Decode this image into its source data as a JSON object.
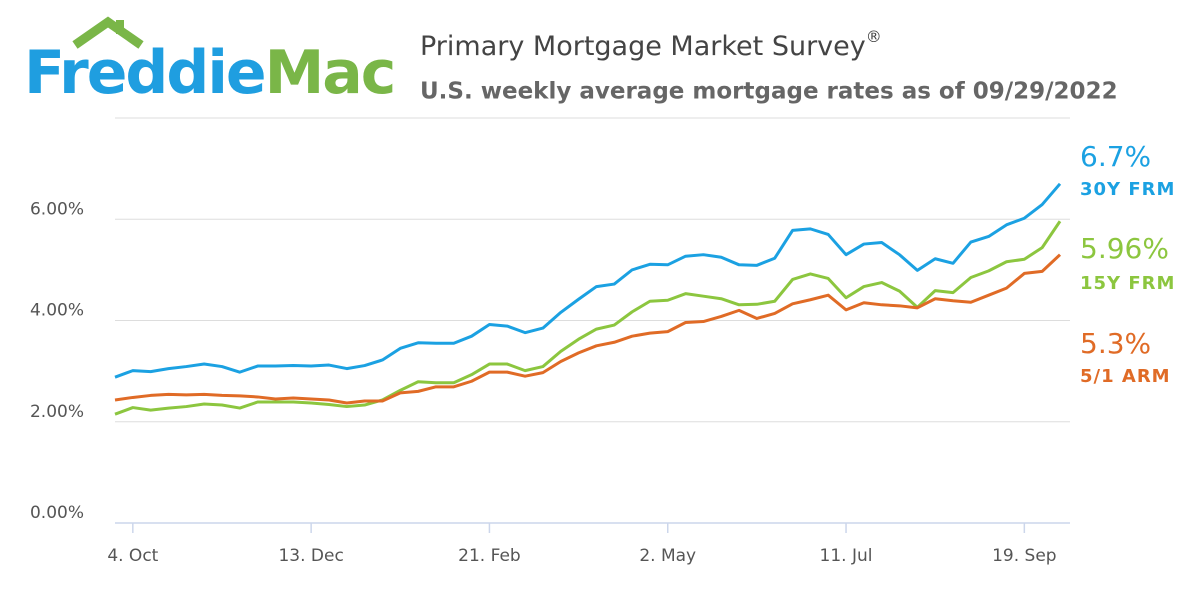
{
  "chart_data": {
    "type": "line",
    "brand": {
      "first": "Freddie",
      "second": "Mac"
    },
    "title": "Primary Mortgage Market Survey",
    "title_mark": "®",
    "subtitle": "U.S. weekly average mortgage rates as of 09/29/2022",
    "categories": [
      null,
      "4. Oct",
      null,
      null,
      null,
      null,
      null,
      null,
      null,
      null,
      null,
      "13. Dec",
      null,
      null,
      null,
      null,
      null,
      null,
      null,
      null,
      null,
      "21. Feb",
      null,
      null,
      null,
      null,
      null,
      null,
      null,
      null,
      null,
      "2. May",
      null,
      null,
      null,
      null,
      null,
      null,
      null,
      null,
      null,
      "11. Jul",
      null,
      null,
      null,
      null,
      null,
      null,
      null,
      null,
      null,
      "19. Sep",
      null,
      null
    ],
    "ylim": [
      0,
      8
    ],
    "yticks": [
      {
        "value": 0,
        "label": "0.00%"
      },
      {
        "value": 2,
        "label": "2.00%"
      },
      {
        "value": 4,
        "label": "4.00%"
      },
      {
        "value": 6,
        "label": "6.00%"
      }
    ],
    "grid": true,
    "series": [
      {
        "name": "30Y FRM",
        "color": "#1ba1e2",
        "values": [
          2.88,
          3.01,
          2.99,
          3.05,
          3.09,
          3.14,
          3.09,
          2.98,
          3.1,
          3.1,
          3.11,
          3.1,
          3.12,
          3.05,
          3.11,
          3.22,
          3.45,
          3.56,
          3.55,
          3.55,
          3.69,
          3.92,
          3.89,
          3.76,
          3.85,
          4.16,
          4.42,
          4.67,
          4.72,
          5.0,
          5.11,
          5.1,
          5.27,
          5.3,
          5.25,
          5.1,
          5.09,
          5.23,
          5.78,
          5.81,
          5.7,
          5.3,
          5.51,
          5.54,
          5.3,
          4.99,
          5.22,
          5.13,
          5.55,
          5.66,
          5.89,
          6.02,
          6.29,
          6.7
        ],
        "value_labels": [
          null,
          null,
          null,
          null,
          null,
          null,
          null,
          null,
          null,
          null,
          null,
          null,
          null,
          null,
          null,
          null,
          null,
          null,
          null,
          null,
          null,
          null,
          null,
          null,
          null,
          null,
          null,
          null,
          null,
          null,
          null,
          null,
          null,
          null,
          null,
          null,
          null,
          null,
          null,
          null,
          null,
          null,
          null,
          null,
          null,
          null,
          null,
          null,
          null,
          null,
          null,
          null,
          null,
          "6.7%"
        ]
      },
      {
        "name": "15Y FRM",
        "color": "#8cc63f",
        "values": [
          2.15,
          2.28,
          2.23,
          2.27,
          2.3,
          2.35,
          2.33,
          2.27,
          2.39,
          2.39,
          2.39,
          2.37,
          2.34,
          2.3,
          2.33,
          2.43,
          2.62,
          2.79,
          2.77,
          2.77,
          2.93,
          3.14,
          3.14,
          3.01,
          3.09,
          3.39,
          3.63,
          3.83,
          3.91,
          4.17,
          4.38,
          4.4,
          4.53,
          4.48,
          4.43,
          4.31,
          4.32,
          4.38,
          4.81,
          4.92,
          4.83,
          4.45,
          4.67,
          4.75,
          4.58,
          4.26,
          4.59,
          4.55,
          4.85,
          4.98,
          5.16,
          5.21,
          5.44,
          5.96
        ],
        "value_labels": [
          null,
          null,
          null,
          null,
          null,
          null,
          null,
          null,
          null,
          null,
          null,
          null,
          null,
          null,
          null,
          null,
          null,
          null,
          null,
          null,
          null,
          null,
          null,
          null,
          null,
          null,
          null,
          null,
          null,
          null,
          null,
          null,
          null,
          null,
          null,
          null,
          null,
          null,
          null,
          null,
          null,
          null,
          null,
          null,
          null,
          null,
          null,
          null,
          null,
          null,
          null,
          null,
          null,
          "5.96%"
        ]
      },
      {
        "name": "5/1 ARM",
        "color": "#e06b26",
        "values": [
          2.43,
          2.48,
          2.52,
          2.54,
          2.53,
          2.54,
          2.52,
          2.51,
          2.49,
          2.45,
          2.47,
          2.45,
          2.43,
          2.37,
          2.41,
          2.41,
          2.57,
          2.6,
          2.69,
          2.69,
          2.8,
          2.98,
          2.98,
          2.9,
          2.97,
          3.19,
          3.36,
          3.5,
          3.57,
          3.69,
          3.75,
          3.78,
          3.96,
          3.98,
          4.08,
          4.2,
          4.04,
          4.14,
          4.33,
          4.41,
          4.5,
          4.21,
          4.35,
          4.31,
          4.29,
          4.25,
          4.43,
          4.39,
          4.36,
          4.5,
          4.64,
          4.93,
          4.97,
          5.3
        ],
        "value_labels": [
          null,
          null,
          null,
          null,
          null,
          null,
          null,
          null,
          null,
          null,
          null,
          null,
          null,
          null,
          null,
          null,
          null,
          null,
          null,
          null,
          null,
          null,
          null,
          null,
          null,
          null,
          null,
          null,
          null,
          null,
          null,
          null,
          null,
          null,
          null,
          null,
          null,
          null,
          null,
          null,
          null,
          null,
          null,
          null,
          null,
          null,
          null,
          null,
          null,
          null,
          null,
          null,
          null,
          "5.3%"
        ]
      }
    ]
  }
}
